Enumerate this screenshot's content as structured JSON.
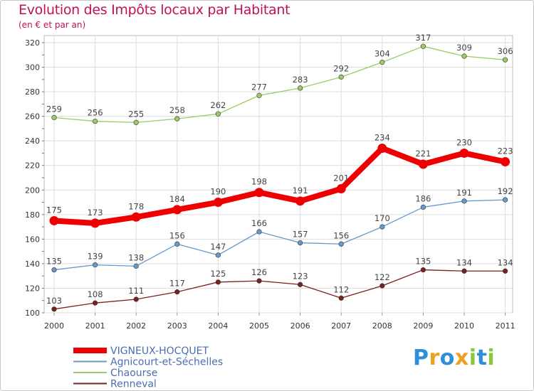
{
  "header": {
    "title": "Evolution des Impôts locaux par Habitant",
    "subtitle": "(en € et par an)"
  },
  "logo": {
    "text": "Proxiti",
    "letters": [
      {
        "ch": "P",
        "color": "#2e8fd8"
      },
      {
        "ch": "r",
        "color": "#f0a020"
      },
      {
        "ch": "o",
        "color": "#2e8fd8"
      },
      {
        "ch": "x",
        "color": "#f0a020"
      },
      {
        "ch": "i",
        "color": "#8cc63f"
      },
      {
        "ch": "t",
        "color": "#2e8fd8"
      },
      {
        "ch": "i",
        "color": "#8cc63f"
      }
    ]
  },
  "chart_data": {
    "type": "line",
    "title": "Evolution des Impôts locaux par Habitant",
    "subtitle": "(en € et par an)",
    "xlabel": "",
    "ylabel": "",
    "ylim": [
      100,
      320
    ],
    "y_ticks": [
      100,
      120,
      140,
      160,
      180,
      200,
      220,
      240,
      260,
      280,
      300,
      320
    ],
    "x": [
      "2000",
      "2001",
      "2002",
      "2003",
      "2004",
      "2005",
      "2006",
      "2007",
      "2008",
      "2009",
      "2010",
      "2011"
    ],
    "grid": true,
    "legend_position": "bottom-left",
    "series": [
      {
        "name": "VIGNEUX-HOCQUET",
        "color": "#ee0000",
        "bold": true,
        "values": [
          175,
          173,
          178,
          184,
          190,
          198,
          191,
          201,
          234,
          221,
          230,
          223
        ]
      },
      {
        "name": "Agnicourt-et-Séchelles",
        "color": "#6699cc",
        "bold": false,
        "values": [
          135,
          139,
          138,
          156,
          147,
          166,
          157,
          156,
          170,
          186,
          191,
          192
        ]
      },
      {
        "name": "Chaourse",
        "color": "#99cc66",
        "bold": false,
        "values": [
          259,
          256,
          255,
          258,
          262,
          277,
          283,
          292,
          304,
          317,
          309,
          306
        ]
      },
      {
        "name": "Renneval",
        "color": "#7a2020",
        "bold": false,
        "values": [
          103,
          108,
          111,
          117,
          125,
          126,
          123,
          112,
          122,
          135,
          134,
          134
        ]
      }
    ]
  }
}
